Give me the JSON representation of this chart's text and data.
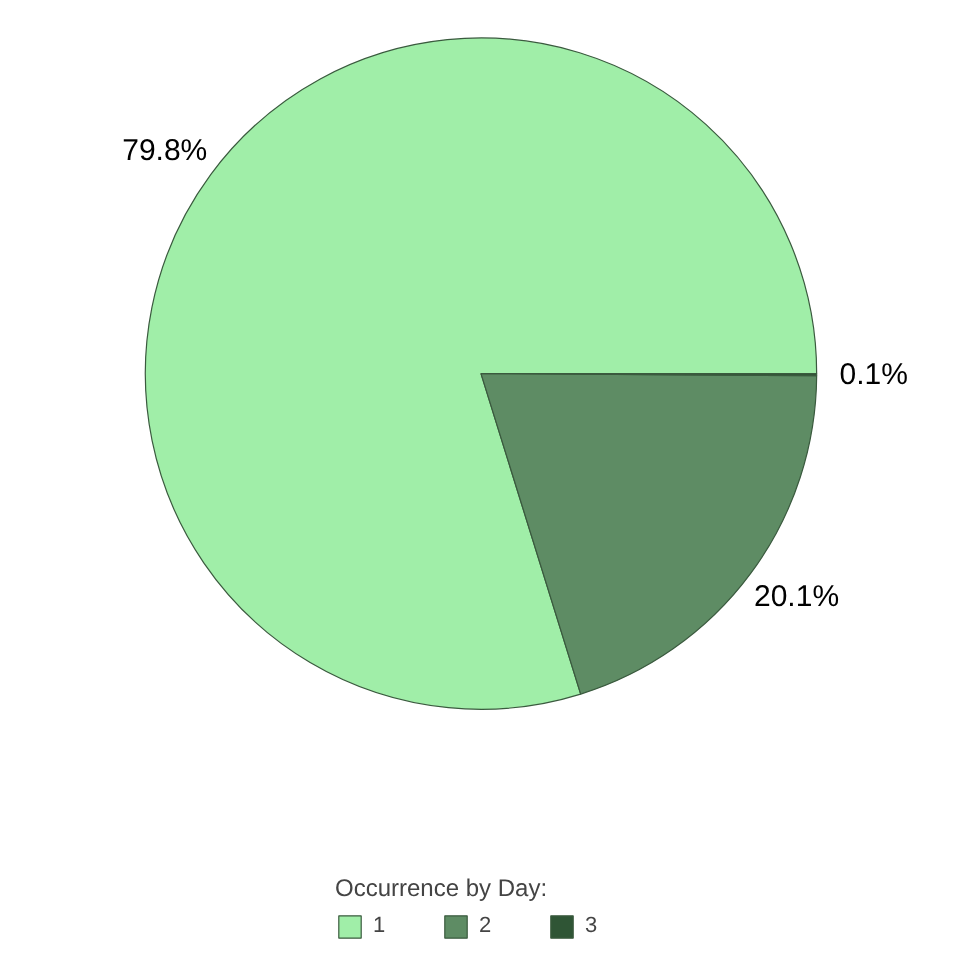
{
  "chart_data": {
    "type": "pie",
    "legend_title": "Occurrence by Day:",
    "legend": "bottom",
    "categories": [
      "1",
      "2",
      "3"
    ],
    "values": [
      79.8,
      20.1,
      0.1
    ],
    "colors": [
      "#a0eea8",
      "#5e8c64",
      "#2f5535"
    ],
    "value_labels": [
      "79.8%",
      "20.1%",
      "0.1%"
    ]
  }
}
